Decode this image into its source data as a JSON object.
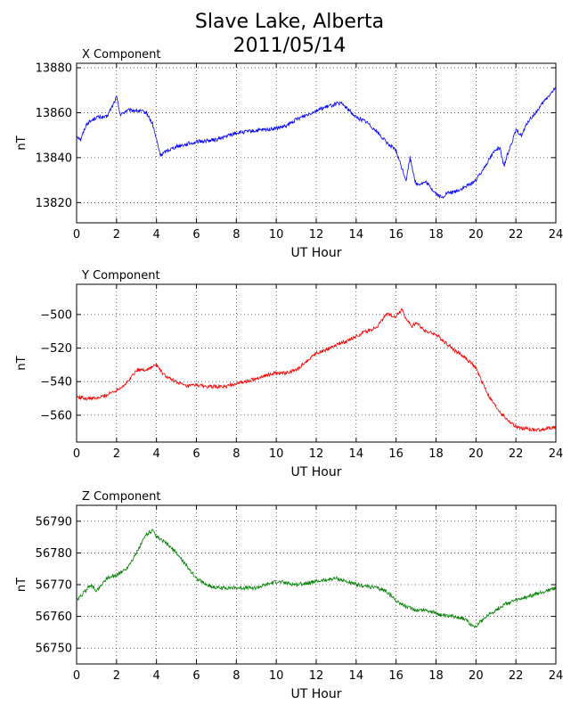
{
  "figure": {
    "title_line1": "Slave Lake, Alberta",
    "title_line2": "2011/05/14"
  },
  "chart_data": [
    {
      "type": "line",
      "title": "X Component",
      "xlabel": "UT Hour",
      "ylabel": "nT",
      "xlim": [
        0,
        24
      ],
      "ylim": [
        13811,
        13882
      ],
      "xticks": [
        0,
        2,
        4,
        6,
        8,
        10,
        12,
        14,
        16,
        18,
        20,
        22,
        24
      ],
      "yticks": [
        13820,
        13840,
        13860,
        13880
      ],
      "grid": true,
      "color": "#0000ff",
      "series": [
        {
          "x": [
            0,
            0.2,
            0.5,
            1,
            1.5,
            1.8,
            2,
            2.2,
            2.5,
            3,
            3.5,
            3.8,
            4,
            4.2,
            4.5,
            5,
            6,
            7,
            8,
            9,
            10,
            10.5,
            11,
            12,
            13,
            13.3,
            14,
            14.5,
            15,
            15.5,
            16,
            16.3,
            16.5,
            16.7,
            17,
            17.5,
            18,
            18.3,
            18.5,
            19,
            19.5,
            20,
            20.3,
            20.5,
            21,
            21.2,
            21.4,
            21.6,
            22,
            22.3,
            22.6,
            23,
            23.5,
            24
          ],
          "y": [
            13850,
            13848,
            13855,
            13858,
            13858,
            13863,
            13867,
            13859,
            13861,
            13861,
            13860,
            13855,
            13848,
            13841,
            13843,
            13845,
            13847,
            13848,
            13851,
            13852,
            13853,
            13854,
            13857,
            13861,
            13864,
            13864,
            13858,
            13856,
            13852,
            13847,
            13843,
            13835,
            13830,
            13840,
            13828,
            13829,
            13824,
            13822,
            13824,
            13825,
            13827,
            13830,
            13834,
            13837,
            13844,
            13844,
            13836,
            13842,
            13852,
            13850,
            13856,
            13860,
            13866,
            13871
          ]
        }
      ]
    },
    {
      "type": "line",
      "title": "Y Component",
      "xlabel": "UT Hour",
      "ylabel": "nT",
      "xlim": [
        0,
        24
      ],
      "ylim": [
        -576,
        -482
      ],
      "xticks": [
        0,
        2,
        4,
        6,
        8,
        10,
        12,
        14,
        16,
        18,
        20,
        22,
        24
      ],
      "yticks": [
        -500,
        -520,
        -540,
        -560
      ],
      "grid": true,
      "color": "#ff0000",
      "series": [
        {
          "x": [
            0,
            0.5,
            1,
            1.5,
            2,
            2.5,
            3,
            3.5,
            4,
            4.3,
            4.6,
            5,
            5.5,
            6,
            6.5,
            7,
            7.5,
            8,
            8.5,
            9,
            9.5,
            10,
            10.5,
            11,
            11.5,
            12,
            12.5,
            13,
            13.5,
            14,
            14.5,
            15,
            15.5,
            16,
            16.3,
            16.5,
            16.8,
            17,
            17.5,
            18,
            18.5,
            19,
            19.5,
            20,
            20.3,
            20.7,
            21,
            21.5,
            22,
            22.5,
            23,
            23.5,
            24
          ],
          "y": [
            -549,
            -550,
            -550,
            -548,
            -545,
            -541,
            -533,
            -533,
            -530,
            -535,
            -538,
            -540,
            -543,
            -542,
            -543,
            -543,
            -543,
            -541,
            -540,
            -538,
            -536,
            -535,
            -535,
            -533,
            -528,
            -523,
            -521,
            -518,
            -516,
            -513,
            -510,
            -508,
            -500,
            -501,
            -497,
            -503,
            -507,
            -505,
            -510,
            -512,
            -517,
            -522,
            -526,
            -532,
            -540,
            -550,
            -555,
            -562,
            -567,
            -568,
            -569,
            -568,
            -567
          ]
        }
      ]
    },
    {
      "type": "line",
      "title": "Z Component",
      "xlabel": "UT Hour",
      "ylabel": "nT",
      "xlim": [
        0,
        24
      ],
      "ylim": [
        56745,
        56795
      ],
      "xticks": [
        0,
        2,
        4,
        6,
        8,
        10,
        12,
        14,
        16,
        18,
        20,
        22,
        24
      ],
      "yticks": [
        56750,
        56760,
        56770,
        56780,
        56790
      ],
      "grid": true,
      "color": "#008000",
      "series": [
        {
          "x": [
            0,
            0.3,
            0.7,
            1,
            1.5,
            2,
            2.5,
            3,
            3.5,
            3.8,
            4,
            4.5,
            5,
            5.5,
            6,
            6.5,
            7,
            8,
            9,
            10,
            11,
            12,
            13,
            13.5,
            14,
            15,
            15.5,
            16,
            16.5,
            17,
            17.5,
            18,
            18.5,
            19,
            19.5,
            19.8,
            20,
            20.5,
            21,
            21.5,
            22,
            22.5,
            23,
            23.5,
            24
          ],
          "y": [
            56765,
            56767,
            56770,
            56768,
            56772,
            56773,
            56775,
            56780,
            56786,
            56787,
            56785,
            56783,
            56780,
            56776,
            56772,
            56770,
            56769,
            56769,
            56769,
            56771,
            56770,
            56771,
            56772,
            56771,
            56770,
            56769,
            56768,
            56765,
            56763,
            56762,
            56762,
            56761,
            56760,
            56760,
            56759,
            56757,
            56757,
            56760,
            56762,
            56764,
            56765,
            56766,
            56767,
            56768,
            56769
          ]
        }
      ]
    }
  ]
}
